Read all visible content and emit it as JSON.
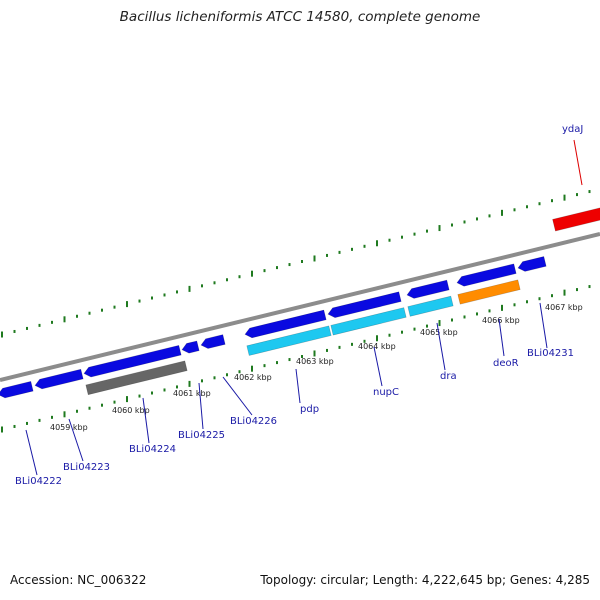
{
  "header": {
    "title": "Bacillus licheniformis ATCC 14580, complete genome"
  },
  "footer": {
    "accession": "Accession: NC_006322",
    "summary": "Topology: circular; Length: 4,222,645 bp; Genes: 4,285"
  },
  "map": {
    "colors": {
      "backbone": "#8c8c8c",
      "tick": "#1f7a1f",
      "gene_forward": "#0a0ae0",
      "gene_reverse_blue": "#0a0ae0",
      "gene_cyan": "#1ec8f0",
      "gene_gray": "#666666",
      "gene_orange": "#ff8c00",
      "gene_red": "#ee0000",
      "label_blue": "#1a1aa6",
      "label_red": "#dd0000"
    },
    "tick_labels": [
      {
        "kbp": "4059 kbp"
      },
      {
        "kbp": "4060 kbp"
      },
      {
        "kbp": "4061 kbp"
      },
      {
        "kbp": "4062 kbp"
      },
      {
        "kbp": "4063 kbp"
      },
      {
        "kbp": "4064 kbp"
      },
      {
        "kbp": "4065 kbp"
      },
      {
        "kbp": "4066 kbp"
      },
      {
        "kbp": "4067 kbp"
      }
    ],
    "gene_labels": [
      {
        "name": "BLi04222"
      },
      {
        "name": "BLi04223"
      },
      {
        "name": "BLi04224"
      },
      {
        "name": "BLi04225"
      },
      {
        "name": "BLi04226"
      },
      {
        "name": "pdp"
      },
      {
        "name": "nupC"
      },
      {
        "name": "dra"
      },
      {
        "name": "deoR"
      },
      {
        "name": "BLi04231"
      },
      {
        "name": "ydaJ"
      }
    ]
  }
}
